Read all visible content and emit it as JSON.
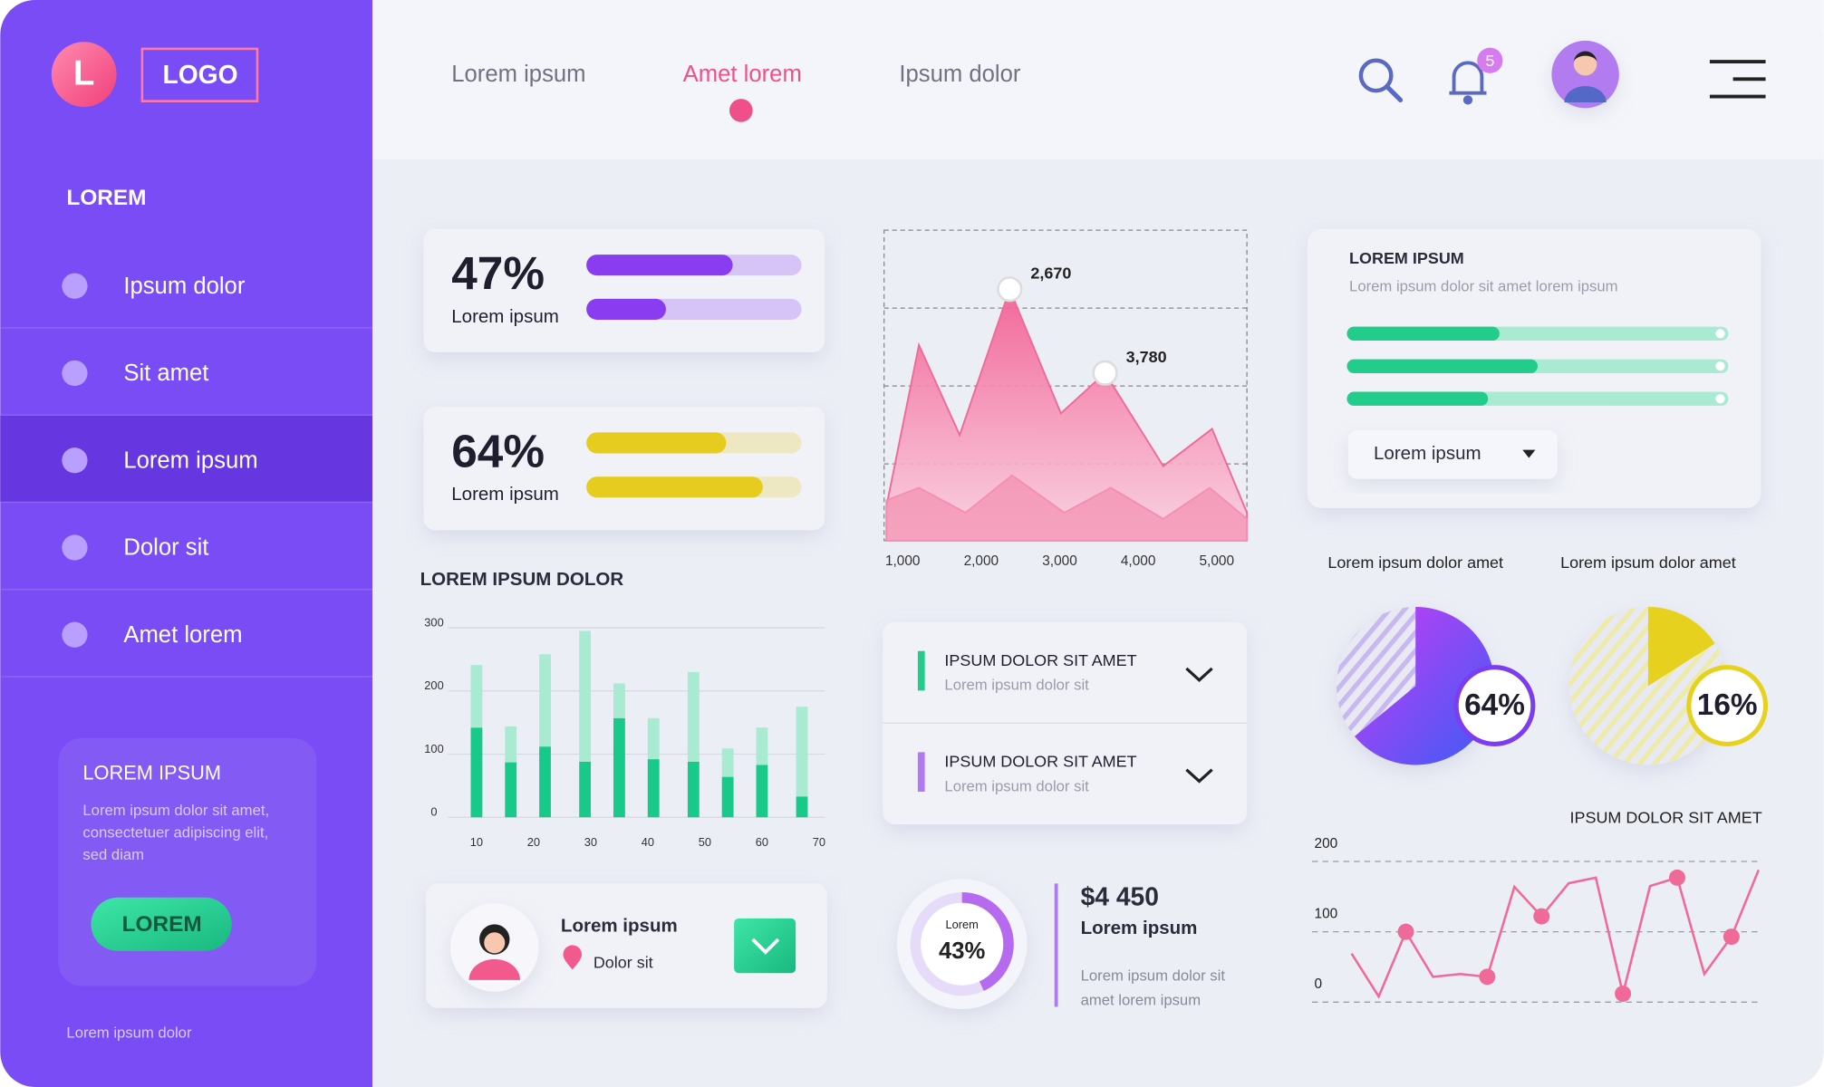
{
  "sidebar": {
    "logo_letter": "L",
    "logo": "LOGO",
    "section": "LOREM",
    "menu": [
      "Ipsum dolor",
      "Sit amet",
      "Lorem ipsum",
      "Dolor sit",
      "Amet lorem"
    ],
    "active": 2,
    "card": {
      "title": "LOREM IPSUM",
      "text": [
        "Lorem ipsum dolor sit amet,",
        "consectetuer adipiscing elit,",
        "sed diam"
      ],
      "button": "LOREM"
    },
    "footer": "Lorem ipsum dolor"
  },
  "nav": {
    "tabs": [
      "Lorem ipsum",
      "Amet lorem",
      "Ipsum dolor"
    ],
    "active": 1,
    "notifications": 5
  },
  "stats": [
    {
      "value": 47,
      "value_label": "47%",
      "label": "Lorem ipsum",
      "bars": [
        68,
        37
      ],
      "colors": [
        "#8a3cf0",
        "#8a3cf0"
      ]
    },
    {
      "value": 64,
      "value_label": "64%",
      "label": "Lorem ipsum",
      "bars": [
        65,
        82
      ],
      "colors": [
        "#e6cc1e",
        "#e6cc1e"
      ]
    }
  ],
  "area_chart": {
    "type": "area",
    "xlim": [
      763,
      5385
    ],
    "ylim": [
      0,
      100
    ],
    "xticks": [
      {
        "value": 1000,
        "label": "1,000"
      },
      {
        "value": 2000,
        "label": "2,000"
      },
      {
        "value": 3000,
        "label": "3,000"
      },
      {
        "value": 4000,
        "label": "4,000"
      },
      {
        "value": 5000,
        "label": "5,000"
      }
    ],
    "annotations": [
      "2,670",
      "3,780"
    ],
    "series": [
      {
        "color": "#f06a98",
        "x": [
          793,
          1207,
          1726,
          2363,
          3015,
          3578,
          4319,
          4941,
          5385
        ],
        "values": [
          11,
          63,
          34,
          81,
          41,
          54,
          24,
          36,
          9
        ]
      },
      {
        "color": "#f48fb1",
        "x": [
          793,
          1207,
          1800,
          2393,
          3059,
          3652,
          4319,
          4911,
          5385
        ],
        "values": [
          13,
          17,
          9,
          21,
          9,
          17,
          7,
          17,
          7
        ]
      }
    ]
  },
  "bar_chart": {
    "type": "bar",
    "title": "LOREM IPSUM DOLOR",
    "xlim": [
      5,
      71
    ],
    "ylim": [
      0,
      300
    ],
    "yticks": [
      0,
      100,
      200,
      300
    ],
    "xticks": [
      10,
      20,
      30,
      40,
      50,
      60,
      70
    ],
    "grid": true,
    "x": [
      10,
      16,
      22,
      29,
      35,
      41,
      48,
      54,
      60,
      67
    ],
    "series": [
      {
        "color": "#19c98a",
        "values": [
          142,
          87,
          112,
          88,
          157,
          92,
          88,
          64,
          83,
          33
        ]
      },
      {
        "color": "#a8ead2",
        "values": [
          99,
          57,
          146,
          207,
          55,
          65,
          142,
          45,
          59,
          142
        ]
      }
    ]
  },
  "accordion": [
    {
      "title": "IPSUM DOLOR  SIT AMET",
      "subtitle": "Lorem ipsum dolor sit",
      "color": "#22cc8a"
    },
    {
      "title": "IPSUM DOLOR  SIT AMET",
      "subtitle": "Lorem ipsum dolor sit",
      "color": "#b07af0"
    }
  ],
  "profile": {
    "name": "Lorem ipsum",
    "location": "Dolor sit"
  },
  "donut": {
    "label": "Lorem",
    "value": 43,
    "value_label": "43%"
  },
  "amount": {
    "value": "$4 450",
    "label": "Lorem ipsum",
    "text": [
      "Lorem ipsum dolor sit",
      "amet lorem ipsum"
    ]
  },
  "progress_card": {
    "title": "LOREM IPSUM",
    "subtitle": "Lorem ipsum dolor sit amet lorem ipsum",
    "bars": [
      40,
      50,
      37
    ],
    "dropdown": "Lorem ipsum"
  },
  "pies": [
    {
      "caption": "Lorem ipsum dolor amet",
      "value": 64,
      "value_label": "64%",
      "color": "#7c3cf0"
    },
    {
      "caption": "Lorem ipsum dolor amet",
      "value": 16,
      "value_label": "16%",
      "color": "#e6d21e"
    }
  ],
  "line_chart": {
    "type": "line",
    "title": "IPSUM DOLOR  SIT AMET",
    "ylim": [
      0,
      200
    ],
    "yticks": [
      0,
      100,
      200
    ],
    "color": "#f06a98",
    "values": [
      69,
      8,
      100,
      36,
      40,
      36,
      164,
      122,
      169,
      177,
      12,
      165,
      177,
      40,
      93,
      188
    ]
  }
}
